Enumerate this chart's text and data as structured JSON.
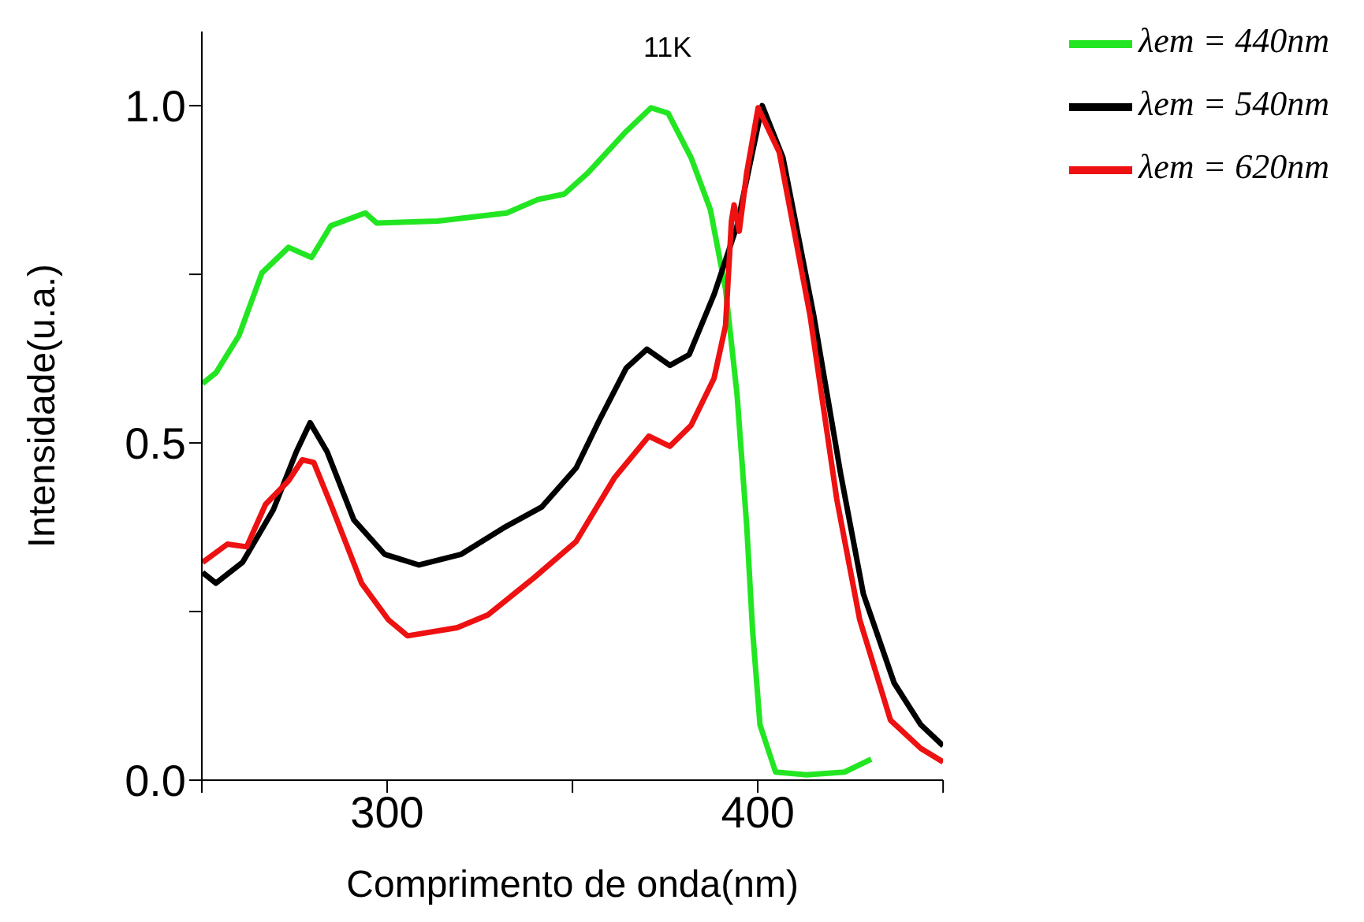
{
  "chart_data": {
    "type": "line",
    "title": "11K",
    "xlabel": "Comprimento de onda(nm)",
    "ylabel": "Intensidade(u.a.)",
    "xlim": [
      250,
      450
    ],
    "xticks": [
      {
        "value": 250,
        "label": null
      },
      300,
      {
        "value": 350,
        "label": null
      },
      400,
      {
        "value": 450,
        "label": null
      }
    ],
    "ylim": [
      0,
      1.11
    ],
    "yticks": [
      {
        "value": 0,
        "label": "0.0"
      },
      {
        "value": 0.25,
        "label": null
      },
      0.5,
      {
        "value": 0.75,
        "label": null
      },
      {
        "value": 1,
        "label": "1.0"
      }
    ],
    "grid": false,
    "legend": "top right",
    "marker": "none",
    "line_style": "solid",
    "series": [
      {
        "name": "λem = 440nm",
        "color": "#22e622",
        "x": [
          250.2,
          253.8,
          260,
          266.2,
          273.4,
          279.6,
          284.8,
          294.1,
          297.2,
          313.7,
          332.3,
          340.7,
          347.8,
          354.1,
          364.5,
          371.2,
          375.8,
          382,
          387.2,
          391.3,
          394.4,
          397,
          398.6,
          400.6,
          404.8,
          413,
          423.4,
          430.6
        ],
        "values": [
          0.588,
          0.604,
          0.659,
          0.752,
          0.79,
          0.775,
          0.822,
          0.841,
          0.826,
          0.829,
          0.841,
          0.861,
          0.869,
          0.9,
          0.962,
          0.997,
          0.989,
          0.923,
          0.846,
          0.728,
          0.572,
          0.378,
          0.222,
          0.082,
          0.012,
          0.008,
          0.012,
          0.031
        ]
      },
      {
        "name": "λem = 540nm",
        "color": "#000000",
        "x": [
          250.2,
          253.8,
          261,
          269.3,
          275.5,
          279.2,
          283.8,
          291,
          299.3,
          308.6,
          320,
          331.4,
          341.7,
          351,
          357.2,
          364.5,
          370.1,
          376.3,
          381.5,
          388.2,
          394.4,
          401.2,
          406.8,
          415.1,
          422.3,
          428.5,
          436.8,
          444,
          450
        ],
        "values": [
          0.308,
          0.292,
          0.323,
          0.401,
          0.487,
          0.53,
          0.487,
          0.386,
          0.335,
          0.319,
          0.335,
          0.374,
          0.405,
          0.463,
          0.533,
          0.611,
          0.639,
          0.615,
          0.631,
          0.72,
          0.822,
          1.0,
          0.923,
          0.689,
          0.456,
          0.276,
          0.144,
          0.082,
          0.051
        ]
      },
      {
        "name": "λem = 620nm",
        "color": "#ee1111",
        "x": [
          250.2,
          256.9,
          262.1,
          267.2,
          273.4,
          277.1,
          280.2,
          284.8,
          293.1,
          300.3,
          305.5,
          318.9,
          327.2,
          339.6,
          351,
          361.3,
          370.6,
          376.3,
          382,
          388.2,
          391.3,
          392.9,
          393.6,
          395,
          397,
          400.1,
          405.8,
          414.1,
          421.3,
          427.5,
          435.8,
          444,
          450
        ],
        "values": [
          0.323,
          0.35,
          0.346,
          0.409,
          0.444,
          0.475,
          0.471,
          0.409,
          0.292,
          0.238,
          0.214,
          0.226,
          0.245,
          0.3,
          0.354,
          0.448,
          0.51,
          0.495,
          0.526,
          0.596,
          0.674,
          0.829,
          0.853,
          0.814,
          0.9,
          0.997,
          0.931,
          0.689,
          0.417,
          0.238,
          0.089,
          0.047,
          0.027
        ]
      }
    ]
  }
}
